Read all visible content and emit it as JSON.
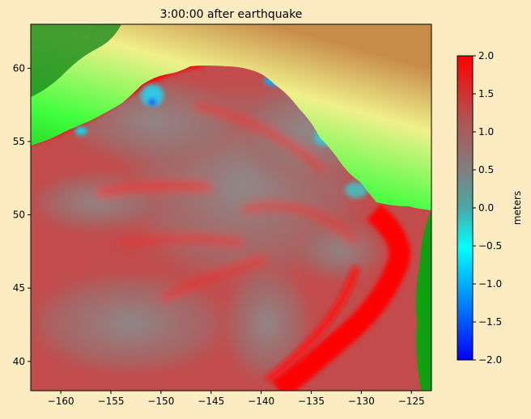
{
  "chart_data": {
    "type": "heatmap",
    "title": "3:00:00 after earthquake",
    "xlabel": "",
    "ylabel": "",
    "xlim": [
      -163,
      -123
    ],
    "ylim": [
      38,
      63
    ],
    "x_ticks": [
      -160,
      -155,
      -150,
      -145,
      -140,
      -135,
      -130,
      -125
    ],
    "x_tick_labels": [
      "−160",
      "−155",
      "−150",
      "−145",
      "−140",
      "−135",
      "−130",
      "−125"
    ],
    "y_ticks": [
      40,
      45,
      50,
      55,
      60
    ],
    "y_tick_labels": [
      "40",
      "45",
      "50",
      "55",
      "60"
    ],
    "grid": false,
    "colorbar": {
      "label": "meters",
      "min": -2.0,
      "max": 2.0,
      "ticks": [
        2.0,
        1.5,
        1.0,
        0.5,
        0.0,
        -0.5,
        -1.0,
        -1.5,
        -2.0
      ],
      "tick_labels": [
        "2.0",
        "1.5",
        "1.0",
        "0.5",
        "0.0",
        "−0.5",
        "−1.0",
        "−1.5",
        "−2.0"
      ],
      "colors": [
        "#0000ff",
        "#00a0ff",
        "#00ffff",
        "#50b4b4",
        "#808080",
        "#b45050",
        "#ff0000"
      ]
    },
    "colors": {
      "ocean_base": "#c24c4c",
      "wave_grey": "#8a8a8a",
      "wave_front": "#ff0000",
      "land_lowland": "#10a010",
      "land_green": "#3cff3c",
      "land_yellow": "#f0f08a",
      "land_tan": "#c88c4a",
      "figure_bg": "#fdebc2"
    }
  }
}
